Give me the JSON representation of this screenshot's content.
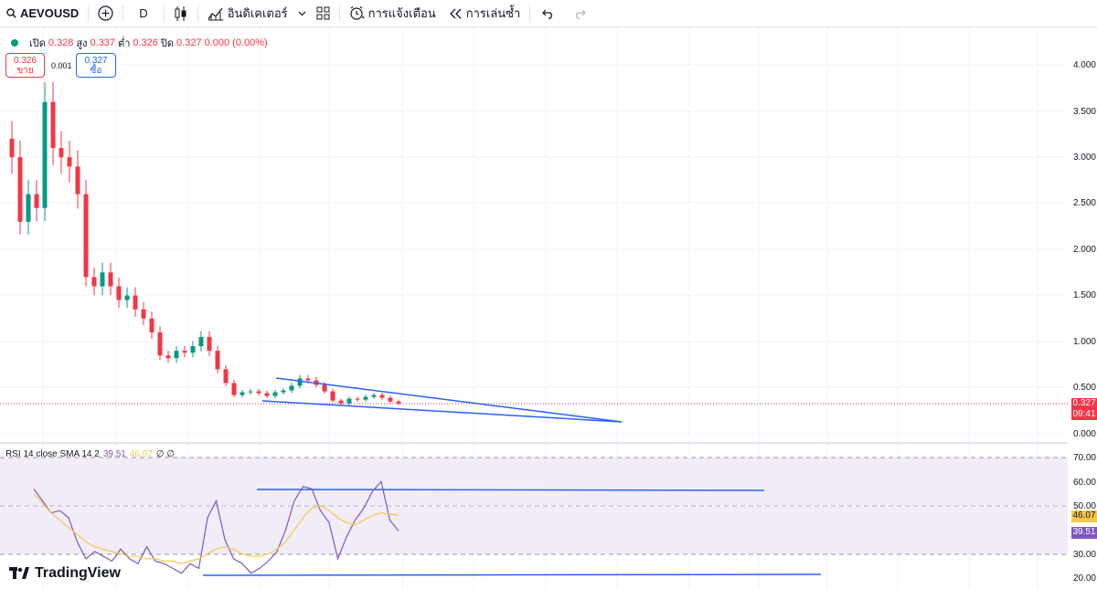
{
  "toolbar": {
    "symbol": "AEVOUSD",
    "interval": "D",
    "indicators": "อินดิเคเตอร์",
    "alerts": "การแจ้งเตือน",
    "replay": "การเล่นซ้ำ",
    "icons": [
      "search-icon",
      "add-symbol-icon",
      "candles-icon",
      "indicators-icon",
      "chevron-down-icon",
      "layouts-icon",
      "alert-clock-icon",
      "replay-icon",
      "undo-icon",
      "redo-icon"
    ]
  },
  "legend": {
    "open_label": "เปิด",
    "open": "0.328",
    "high_label": "สูง",
    "high": "0.337",
    "low_label": "ต่ำ",
    "low": "0.326",
    "close_label": "ปิด",
    "close": "0.327",
    "change": "0.000 (0.00%)"
  },
  "trade": {
    "sell_price": "0.326",
    "sell_label": "ขาย",
    "spread": "0.001",
    "buy_price": "0.327",
    "buy_label": "ซื้อ"
  },
  "price_axis": {
    "ticks": [
      "4.000",
      "3.500",
      "3.000",
      "2.500",
      "2.000",
      "1.500",
      "1.000",
      "0.500",
      "0.000"
    ],
    "last_price": "0.327",
    "countdown": "09:41"
  },
  "rsi": {
    "label": "RSI 14 close SMA 14 2",
    "rsi_value": "39.51",
    "sma_value": "46.07",
    "extra": "∅ ∅",
    "ticks": [
      "70.00",
      "60.00",
      "50.00",
      "30.00",
      "20.00"
    ]
  },
  "brand": "TradingView",
  "colors": {
    "up": "#089981",
    "down": "#f23645",
    "trendline": "#2962ff",
    "rsi": "#7e57c2",
    "rsi_sma": "#f7c948",
    "rsi_band": "#ede7f6"
  },
  "chart_data": {
    "type": "candlestick",
    "price_series": [
      3.2,
      3.0,
      2.3,
      2.6,
      2.45,
      3.6,
      3.1,
      3.0,
      2.9,
      2.6,
      1.7,
      1.6,
      1.75,
      1.6,
      1.45,
      1.5,
      1.35,
      1.25,
      1.1,
      0.85,
      0.82,
      0.9,
      0.88,
      0.95,
      1.05,
      0.9,
      0.7,
      0.55,
      0.42,
      0.45,
      0.46,
      0.44,
      0.41,
      0.45,
      0.47,
      0.52,
      0.6,
      0.58,
      0.53,
      0.46,
      0.36,
      0.33,
      0.38,
      0.37,
      0.4,
      0.42,
      0.39,
      0.35,
      0.327
    ],
    "price_ylim": [
      0,
      4.3
    ],
    "rsi_series": [
      57,
      52,
      47,
      48,
      45,
      35,
      28,
      31,
      29,
      27,
      32,
      28,
      26,
      33,
      27,
      26,
      24,
      22,
      26,
      24,
      45,
      52,
      36,
      28,
      26,
      22,
      24,
      27,
      31,
      40,
      52,
      58,
      57,
      48,
      43,
      28,
      37,
      44,
      49,
      56,
      60,
      44,
      39.51
    ],
    "rsi_sma_series": [
      55,
      51,
      47,
      44,
      41,
      38,
      35,
      33,
      32,
      31,
      30,
      29,
      29,
      28,
      28,
      27,
      27,
      26,
      27,
      28,
      30,
      32,
      33,
      32,
      30,
      29,
      29,
      30,
      32,
      35,
      40,
      45,
      49,
      50,
      48,
      45,
      43,
      42,
      44,
      46,
      47,
      46.5,
      46.07
    ],
    "rsi_ylim": [
      20,
      70
    ]
  }
}
